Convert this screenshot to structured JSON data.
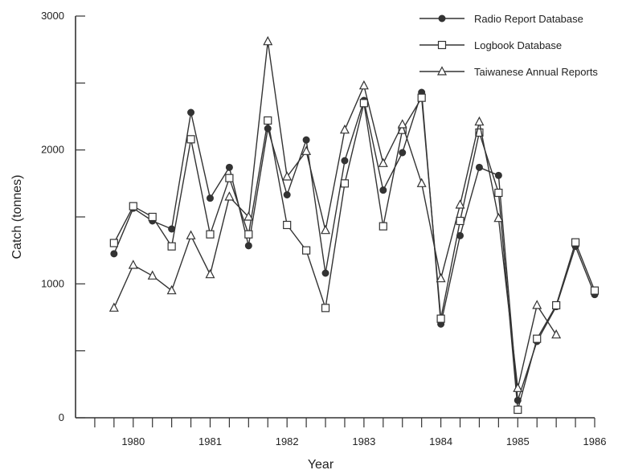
{
  "chart_data": {
    "type": "line",
    "xlabel": "Year",
    "ylabel": "Catch (tonnes)",
    "xlim": [
      1979.25,
      1986.0
    ],
    "ylim": [
      0,
      3000
    ],
    "grid": false,
    "legend": "top-right",
    "x_ticks": [
      {
        "value": 1980,
        "label": "1980"
      },
      {
        "value": 1981,
        "label": "1981"
      },
      {
        "value": 1982,
        "label": "1982"
      },
      {
        "value": 1983,
        "label": "1983"
      },
      {
        "value": 1984,
        "label": "1984"
      },
      {
        "value": 1985,
        "label": "1985"
      },
      {
        "value": 1986,
        "label": "1986"
      }
    ],
    "y_ticks": [
      {
        "value": 0,
        "label": "0"
      },
      {
        "value": 1000,
        "label": "1000"
      },
      {
        "value": 2000,
        "label": "2000"
      },
      {
        "value": 3000,
        "label": "3000"
      }
    ],
    "series": [
      {
        "name": "Radio Report Database",
        "marker": "filled-circle",
        "x": [
          1979.75,
          1980.0,
          1980.25,
          1980.5,
          1980.75,
          1981.0,
          1981.25,
          1981.5,
          1981.75,
          1982.0,
          1982.25,
          1982.5,
          1982.75,
          1983.0,
          1983.25,
          1983.5,
          1983.75,
          1984.0,
          1984.25,
          1984.5,
          1984.75,
          1985.0,
          1985.25,
          1985.5,
          1985.75,
          1986.0
        ],
        "y": [
          1225,
          1565,
          1470,
          1410,
          2280,
          1640,
          1870,
          1285,
          2160,
          1665,
          2075,
          1080,
          1920,
          2370,
          1700,
          1980,
          2430,
          700,
          1360,
          1870,
          1810,
          130,
          570,
          830,
          1280,
          920
        ]
      },
      {
        "name": "Logbook Database",
        "marker": "open-square",
        "x": [
          1979.75,
          1980.0,
          1980.25,
          1980.5,
          1980.75,
          1981.0,
          1981.25,
          1981.5,
          1981.75,
          1982.0,
          1982.25,
          1982.5,
          1982.75,
          1983.0,
          1983.25,
          1983.5,
          1983.75,
          1984.0,
          1984.25,
          1984.5,
          1984.75,
          1985.0,
          1985.25,
          1985.5,
          1985.75,
          1986.0
        ],
        "y": [
          1305,
          1580,
          1500,
          1280,
          2080,
          1370,
          1790,
          1370,
          2220,
          1440,
          1250,
          820,
          1750,
          2350,
          1430,
          2150,
          2390,
          740,
          1470,
          2130,
          1680,
          60,
          590,
          840,
          1310,
          950
        ]
      },
      {
        "name": "Taiwanese Annual Reports",
        "marker": "open-triangle",
        "x": [
          1979.75,
          1980.0,
          1980.25,
          1980.5,
          1980.75,
          1981.0,
          1981.25,
          1981.5,
          1981.75,
          1982.0,
          1982.25,
          1982.5,
          1982.75,
          1983.0,
          1983.25,
          1983.5,
          1983.75,
          1984.0,
          1984.25,
          1984.5,
          1984.75,
          1985.0,
          1985.25,
          1985.5
        ],
        "y": [
          820,
          1140,
          1060,
          950,
          1360,
          1070,
          1650,
          1500,
          2810,
          1800,
          1990,
          1400,
          2150,
          2480,
          1900,
          2190,
          1750,
          1040,
          1590,
          2210,
          1490,
          220,
          840,
          620
        ]
      }
    ]
  }
}
